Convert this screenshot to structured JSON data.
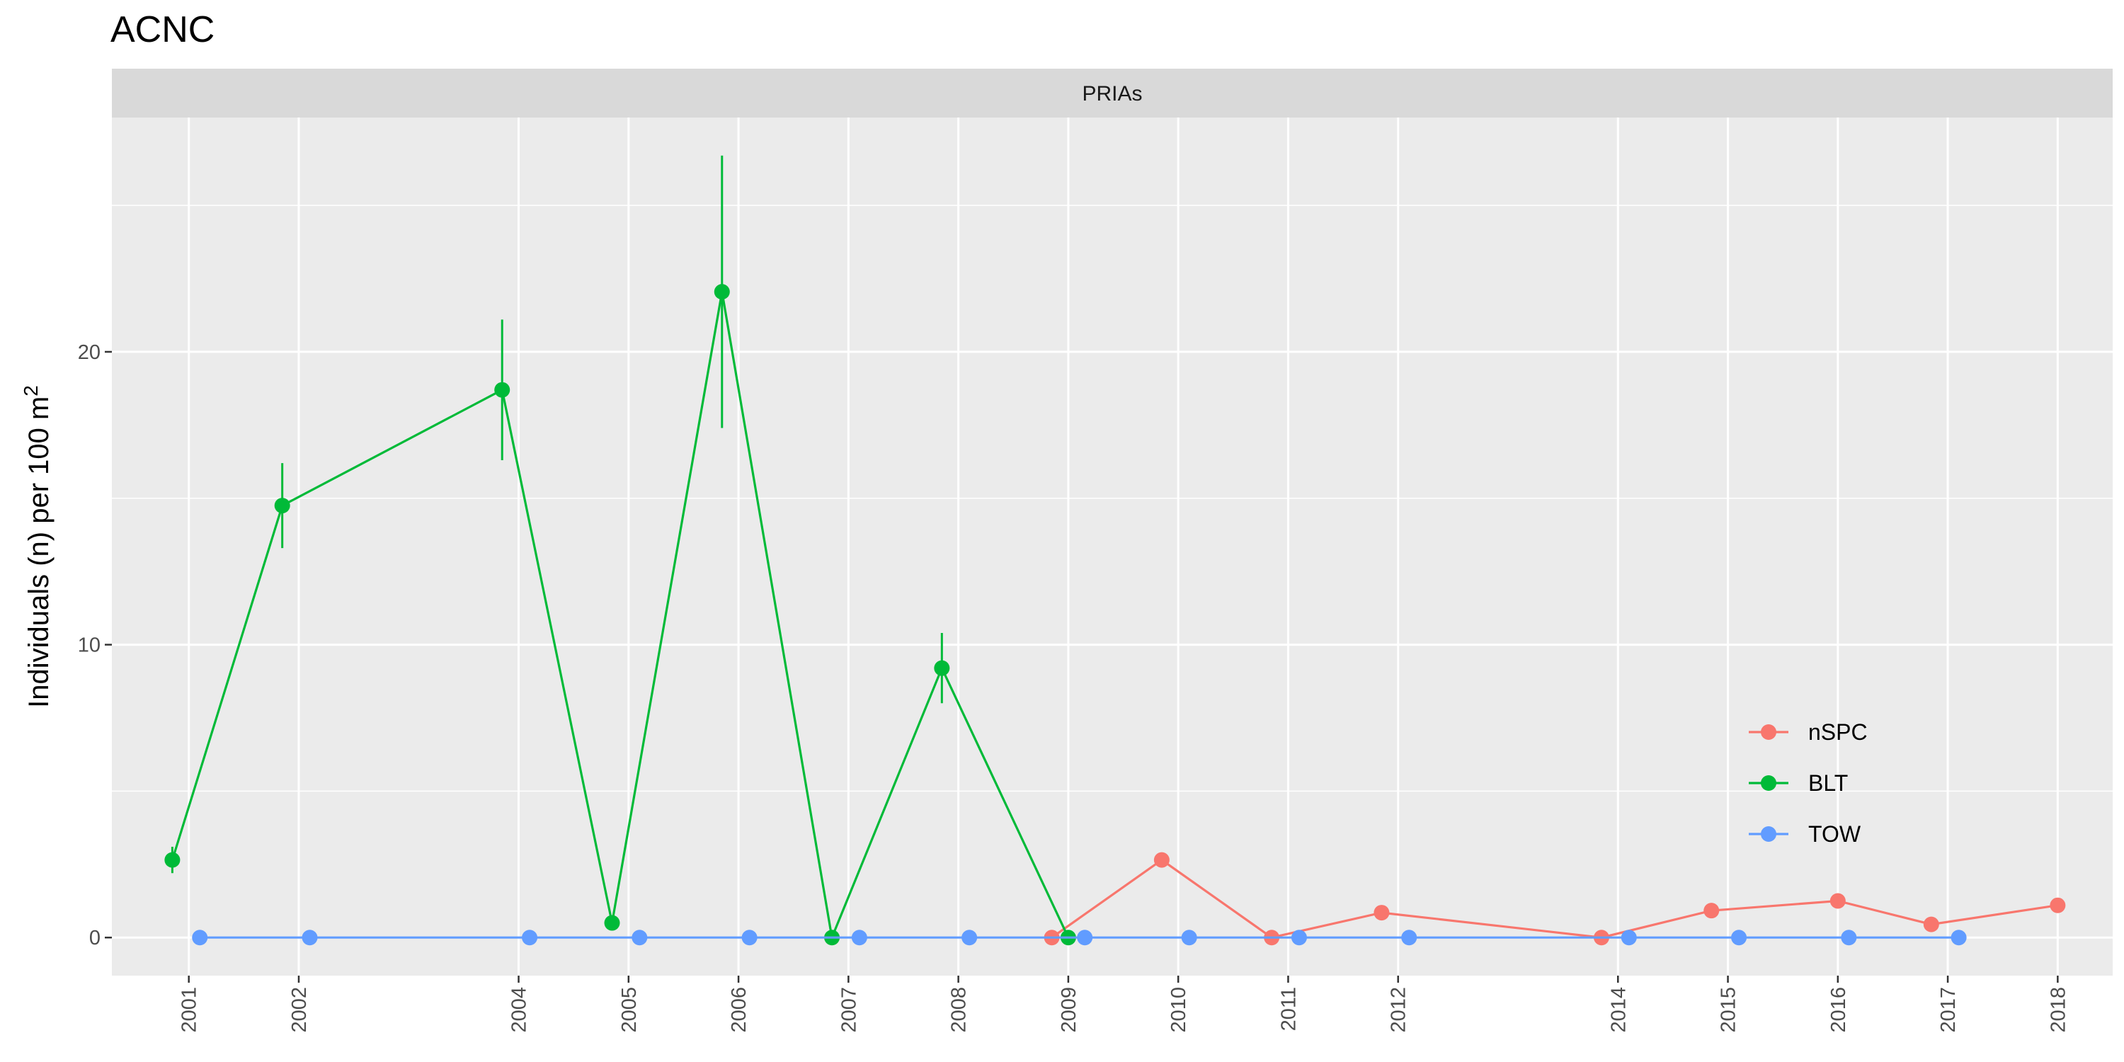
{
  "chart_data": {
    "type": "line",
    "title": "ACNC",
    "facet_label": "PRIAs",
    "ylabel": "Individuals (n) per 100 m",
    "ylabel_superscript": "2",
    "xlabel": "",
    "x_ticks": [
      2001,
      2002,
      2004,
      2005,
      2006,
      2007,
      2008,
      2009,
      2010,
      2011,
      2012,
      2014,
      2015,
      2016,
      2017,
      2018
    ],
    "y_ticks": [
      0,
      10,
      20
    ],
    "xlim": [
      2000.3,
      2018.5
    ],
    "ylim": [
      -1.3,
      28.0
    ],
    "grid": true,
    "legend_position": "right-bottom",
    "series": [
      {
        "name": "nSPC",
        "color": "#F8766D",
        "points": [
          {
            "x": 2008.85,
            "y": 0.0
          },
          {
            "x": 2009.85,
            "y": 2.65
          },
          {
            "x": 2010.85,
            "y": 0.0
          },
          {
            "x": 2011.85,
            "y": 0.85
          },
          {
            "x": 2013.85,
            "y": 0.0
          },
          {
            "x": 2014.85,
            "y": 0.92
          },
          {
            "x": 2016.0,
            "y": 1.25
          },
          {
            "x": 2016.85,
            "y": 0.45
          },
          {
            "x": 2018.0,
            "y": 1.1
          }
        ]
      },
      {
        "name": "BLT",
        "color": "#00BA38",
        "points": [
          {
            "x": 2000.85,
            "y": 2.65,
            "ymin": 2.2,
            "ymax": 3.1
          },
          {
            "x": 2001.85,
            "y": 14.75,
            "ymin": 13.3,
            "ymax": 16.2
          },
          {
            "x": 2003.85,
            "y": 18.7,
            "ymin": 16.3,
            "ymax": 21.1
          },
          {
            "x": 2004.85,
            "y": 0.5,
            "ymin": 0.5,
            "ymax": 0.5
          },
          {
            "x": 2005.85,
            "y": 22.05,
            "ymin": 17.4,
            "ymax": 26.7
          },
          {
            "x": 2006.85,
            "y": 0.0,
            "ymin": 0.0,
            "ymax": 0.0
          },
          {
            "x": 2007.85,
            "y": 9.2,
            "ymin": 8.0,
            "ymax": 10.4
          },
          {
            "x": 2009.0,
            "y": 0.0,
            "ymin": 0.0,
            "ymax": 0.0
          }
        ]
      },
      {
        "name": "TOW",
        "color": "#619CFF",
        "points": [
          {
            "x": 2001.1,
            "y": 0
          },
          {
            "x": 2002.1,
            "y": 0
          },
          {
            "x": 2004.1,
            "y": 0
          },
          {
            "x": 2005.1,
            "y": 0
          },
          {
            "x": 2006.1,
            "y": 0
          },
          {
            "x": 2007.1,
            "y": 0
          },
          {
            "x": 2008.1,
            "y": 0
          },
          {
            "x": 2009.15,
            "y": 0
          },
          {
            "x": 2010.1,
            "y": 0
          },
          {
            "x": 2011.1,
            "y": 0
          },
          {
            "x": 2012.1,
            "y": 0
          },
          {
            "x": 2014.1,
            "y": 0
          },
          {
            "x": 2015.1,
            "y": 0
          },
          {
            "x": 2016.1,
            "y": 0
          },
          {
            "x": 2017.1,
            "y": 0
          }
        ]
      }
    ]
  }
}
